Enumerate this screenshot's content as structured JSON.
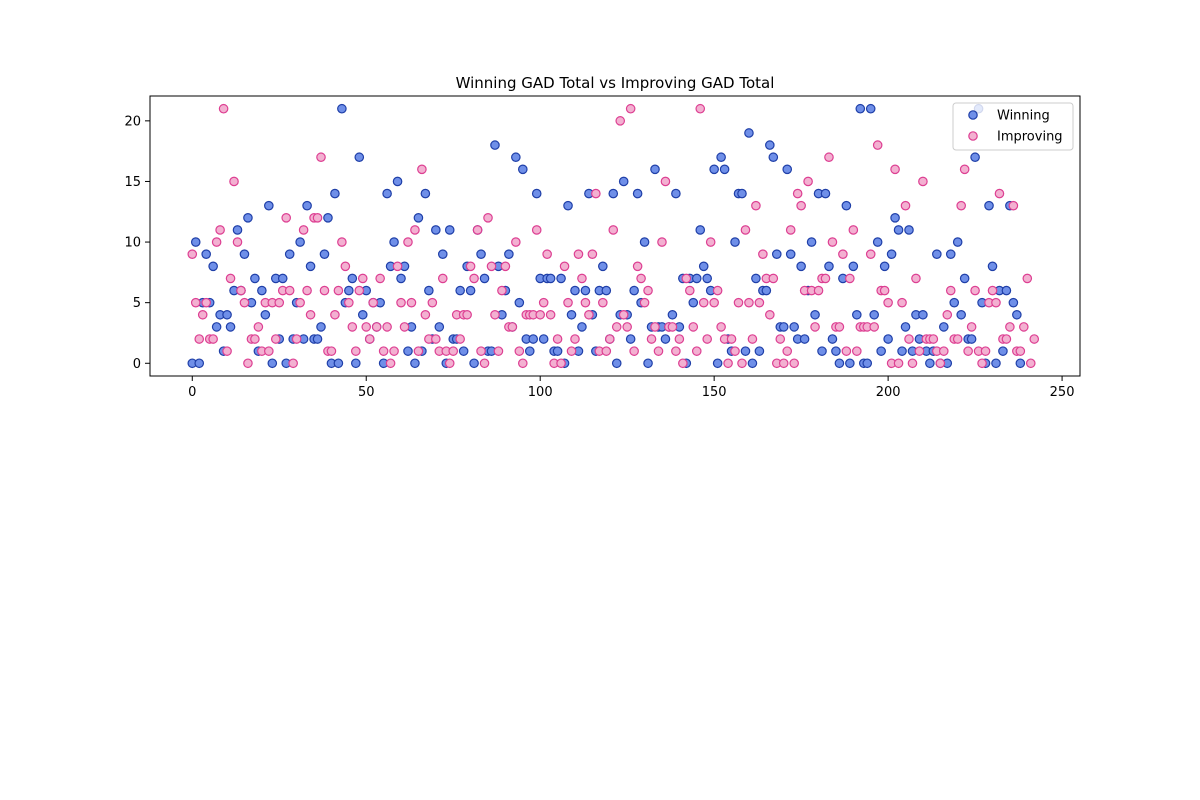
{
  "chart_data": {
    "type": "scatter",
    "title": "Winning GAD Total vs Improving GAD Total",
    "xlabel": "",
    "ylabel": "",
    "xlim": [
      -12.15,
      255.15
    ],
    "ylim": [
      -1.05,
      22.05
    ],
    "x_ticks": [
      0,
      50,
      100,
      150,
      200,
      250
    ],
    "y_ticks": [
      0,
      5,
      10,
      15,
      20
    ],
    "grid": false,
    "legend_position": "upper right",
    "series": [
      {
        "name": "Winning",
        "face_color": "#6f8fe8",
        "edge_color": "#1f3fa8",
        "values": [
          0,
          10,
          0,
          5,
          9,
          5,
          8,
          3,
          4,
          1,
          4,
          3,
          6,
          11,
          6,
          9,
          12,
          5,
          7,
          1,
          6,
          4,
          13,
          0,
          7,
          2,
          7,
          0,
          9,
          2,
          5,
          10,
          2,
          13,
          8,
          2,
          2,
          3,
          9,
          12,
          0,
          14,
          0,
          21,
          5,
          6,
          7,
          0,
          17,
          4,
          6,
          2,
          5,
          3,
          5,
          0,
          14,
          8,
          10,
          15,
          7,
          8,
          1,
          3,
          0,
          12,
          1,
          14,
          6,
          2,
          11,
          3,
          9,
          0,
          11,
          2,
          2,
          6,
          1,
          8,
          6,
          0,
          11,
          9,
          7,
          1,
          1,
          18,
          8,
          4,
          6,
          9,
          3,
          17,
          5,
          16,
          2,
          1,
          2,
          14,
          7,
          2,
          7,
          7,
          1,
          1,
          7,
          0,
          13,
          4,
          6,
          1,
          3,
          6,
          14,
          4,
          1,
          6,
          8,
          6,
          2,
          14,
          0,
          4,
          15,
          4,
          2,
          6,
          14,
          5,
          10,
          0,
          3,
          16,
          3,
          3,
          2,
          3,
          4,
          14,
          3,
          7,
          0,
          7,
          5,
          7,
          11,
          8,
          7,
          6,
          16,
          0,
          17,
          16,
          2,
          1,
          10,
          14,
          14,
          1,
          19,
          0,
          7,
          1,
          6,
          6,
          18,
          17,
          9,
          3,
          3,
          16,
          9,
          3,
          2,
          8,
          2,
          6,
          10,
          4,
          14,
          1,
          14,
          8,
          2,
          1,
          0,
          7,
          13,
          0,
          8,
          4,
          21,
          0,
          0,
          21,
          4,
          10,
          1,
          8,
          2,
          9,
          12,
          11,
          1,
          3,
          11,
          1,
          4,
          2,
          4,
          1,
          0,
          1,
          9,
          0,
          3,
          0,
          9,
          5,
          10,
          4,
          7,
          2,
          2,
          17,
          21,
          5,
          0,
          13,
          8,
          0,
          6,
          1,
          6,
          13,
          5,
          4,
          0
        ]
      },
      {
        "name": "Improving",
        "face_color": "#f3b0d1",
        "edge_color": "#dd3f92",
        "values": [
          9,
          5,
          2,
          4,
          5,
          2,
          2,
          10,
          11,
          21,
          1,
          7,
          15,
          10,
          6,
          5,
          0,
          2,
          2,
          3,
          1,
          5,
          1,
          5,
          2,
          5,
          6,
          12,
          6,
          0,
          2,
          5,
          11,
          6,
          4,
          12,
          12,
          17,
          6,
          1,
          1,
          4,
          6,
          10,
          8,
          5,
          3,
          1,
          6,
          7,
          3,
          2,
          5,
          3,
          7,
          1,
          3,
          0,
          1,
          8,
          5,
          3,
          10,
          5,
          11,
          1,
          16,
          4,
          2,
          5,
          2,
          1,
          7,
          1,
          0,
          1,
          4,
          2,
          4,
          4,
          8,
          7,
          11,
          1,
          0,
          12,
          8,
          4,
          1,
          6,
          8,
          3,
          3,
          10,
          1,
          0,
          4,
          4,
          4,
          11,
          4,
          5,
          9,
          4,
          0,
          2,
          0,
          8,
          5,
          1,
          2,
          9,
          7,
          5,
          4,
          9,
          14,
          1,
          5,
          1,
          2,
          11,
          3,
          20,
          4,
          3,
          21,
          1,
          8,
          7,
          5,
          6,
          2,
          3,
          1,
          10,
          15,
          3,
          3,
          1,
          2,
          0,
          7,
          6,
          3,
          1,
          21,
          5,
          2,
          10,
          5,
          6,
          3,
          2,
          0,
          2,
          1,
          5,
          0,
          11,
          5,
          2,
          13,
          5,
          9,
          7,
          4,
          7,
          0,
          2,
          0,
          1,
          11,
          0,
          14,
          13,
          6,
          15,
          6,
          3,
          6,
          7,
          7,
          17,
          10,
          3,
          3,
          9,
          1,
          7,
          11,
          1,
          3,
          3,
          3,
          9,
          3,
          18,
          6,
          6,
          5,
          0,
          16,
          0,
          5,
          13,
          2,
          0,
          7,
          1,
          15,
          2,
          2,
          2,
          1,
          0,
          1,
          4,
          6,
          2,
          2,
          13,
          16,
          1,
          3,
          6,
          1,
          0,
          1,
          5,
          6,
          5,
          14,
          2,
          2,
          3,
          13,
          1,
          1,
          3,
          7,
          0,
          2
        ]
      }
    ]
  }
}
